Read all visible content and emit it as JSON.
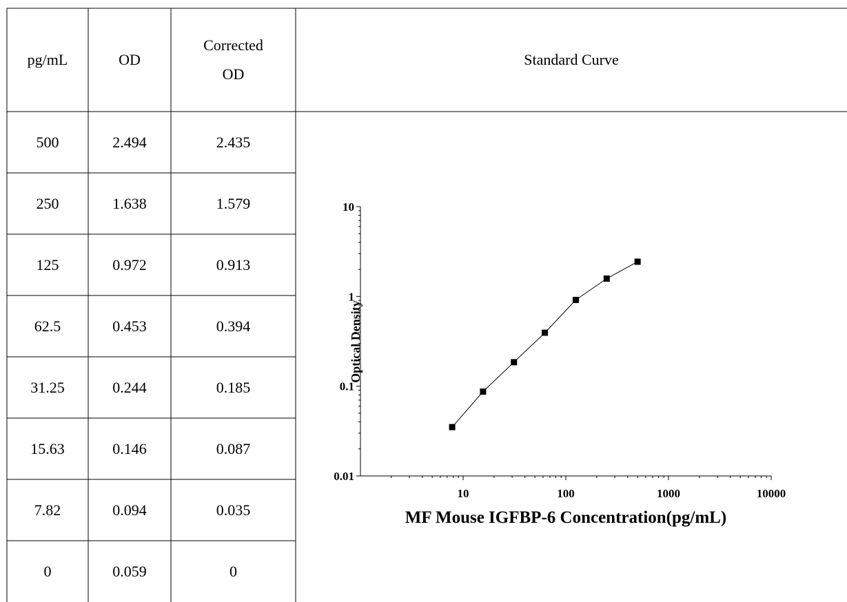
{
  "table": {
    "headers": [
      "pg/mL",
      "OD",
      "Corrected",
      "OD",
      "Standard Curve"
    ],
    "rows": [
      [
        "500",
        "2.494",
        "2.435"
      ],
      [
        "250",
        "1.638",
        "1.579"
      ],
      [
        "125",
        "0.972",
        "0.913"
      ],
      [
        "62.5",
        "0.453",
        "0.394"
      ],
      [
        "31.25",
        "0.244",
        "0.185"
      ],
      [
        "15.63",
        "0.146",
        "0.087"
      ],
      [
        "7.82",
        "0.094",
        "0.035"
      ],
      [
        "0",
        "0.059",
        "0"
      ]
    ]
  },
  "chart_data": {
    "type": "scatter",
    "xscale": "log",
    "yscale": "log",
    "xlabel": "MF Mouse IGFBP-6 Concentration(pg/mL)",
    "ylabel": "Optical Density",
    "xlim": [
      1,
      10000
    ],
    "ylim": [
      0.01,
      10
    ],
    "x_ticks": [
      "10",
      "100",
      "1000",
      "10000"
    ],
    "y_ticks": [
      "0.01",
      "0.1",
      "1",
      "10"
    ],
    "connected_line": true,
    "marker": "square",
    "x": [
      7.82,
      15.63,
      31.25,
      62.5,
      125,
      250,
      500
    ],
    "y": [
      0.035,
      0.087,
      0.185,
      0.394,
      0.913,
      1.579,
      2.435
    ]
  }
}
